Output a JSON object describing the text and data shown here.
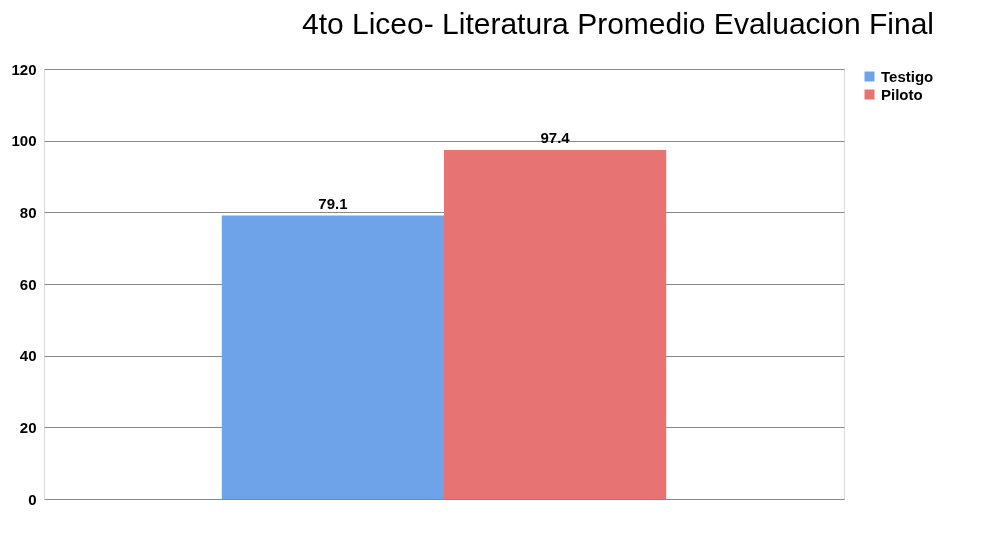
{
  "chart_data": {
    "type": "bar",
    "title": "4to Liceo- Literatura Promedio Evaluacion Final",
    "categories": [
      null
    ],
    "series": [
      {
        "name": "Testigo",
        "color": "#6ea3ea",
        "values": [
          79.1
        ]
      },
      {
        "name": "Piloto",
        "color": "#e87373",
        "values": [
          97.4
        ]
      }
    ],
    "ylim": [
      0,
      120
    ],
    "yticks": [
      0,
      20,
      40,
      60,
      80,
      100,
      120
    ],
    "grid": "y",
    "legend": "right",
    "data_labels": true
  }
}
